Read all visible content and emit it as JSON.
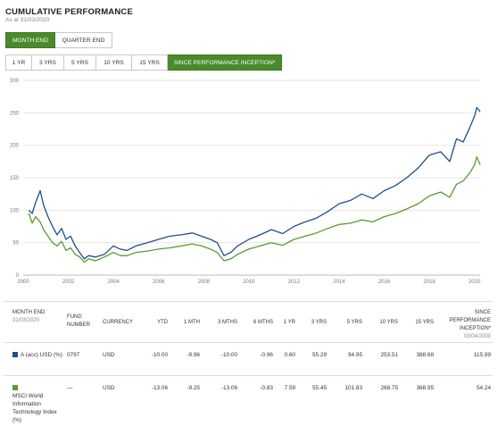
{
  "header": {
    "title": "CUMULATIVE PERFORMANCE",
    "as_at": "As at 31/03/2020"
  },
  "period_tabs": [
    {
      "label": "MONTH END",
      "active": true
    },
    {
      "label": "QUARTER END",
      "active": false
    }
  ],
  "range_tabs": [
    {
      "label": "1 YR",
      "active": false
    },
    {
      "label": "3 YRS",
      "active": false
    },
    {
      "label": "5 YRS",
      "active": false
    },
    {
      "label": "10 YRS",
      "active": false
    },
    {
      "label": "15 YRS",
      "active": false
    },
    {
      "label": "SINCE PERFORMANCE INCEPTION*",
      "active": true
    }
  ],
  "chart_data": {
    "type": "line",
    "ylim": [
      0,
      300
    ],
    "yticks": [
      0,
      50,
      100,
      150,
      200,
      250,
      300
    ],
    "xlim": [
      2000,
      2020.25
    ],
    "xticks": [
      2000,
      2002,
      2004,
      2006,
      2008,
      2010,
      2012,
      2014,
      2016,
      2018,
      2020
    ],
    "grid": true,
    "colors": {
      "fund": "#1f4e8c",
      "index": "#5b9a34"
    },
    "series": [
      {
        "key": "fund",
        "x": [
          2000.25,
          2000.4,
          2000.55,
          2000.75,
          2000.9,
          2001.1,
          2001.3,
          2001.5,
          2001.7,
          2001.9,
          2002.1,
          2002.3,
          2002.5,
          2002.7,
          2002.9,
          2003.2,
          2003.6,
          2004.0,
          2004.3,
          2004.6,
          2005.0,
          2005.5,
          2006.0,
          2006.5,
          2007.0,
          2007.5,
          2007.9,
          2008.3,
          2008.6,
          2008.9,
          2009.2,
          2009.5,
          2010.0,
          2010.5,
          2011.0,
          2011.5,
          2012.0,
          2012.5,
          2013.0,
          2013.5,
          2014.0,
          2014.5,
          2015.0,
          2015.5,
          2016.0,
          2016.5,
          2017.0,
          2017.5,
          2018.0,
          2018.5,
          2018.9,
          2019.2,
          2019.5,
          2019.8,
          2020.0,
          2020.1,
          2020.25
        ],
        "values": [
          100,
          95,
          112,
          130,
          108,
          90,
          75,
          62,
          72,
          55,
          60,
          45,
          35,
          25,
          30,
          28,
          32,
          45,
          40,
          38,
          45,
          50,
          55,
          60,
          62,
          65,
          60,
          55,
          50,
          30,
          35,
          45,
          55,
          62,
          70,
          64,
          75,
          82,
          88,
          98,
          110,
          115,
          125,
          118,
          130,
          138,
          150,
          165,
          185,
          190,
          175,
          210,
          205,
          228,
          245,
          258,
          252
        ]
      },
      {
        "key": "index",
        "x": [
          2000.25,
          2000.4,
          2000.55,
          2000.75,
          2000.9,
          2001.1,
          2001.3,
          2001.5,
          2001.7,
          2001.9,
          2002.1,
          2002.3,
          2002.5,
          2002.7,
          2002.9,
          2003.2,
          2003.6,
          2004.0,
          2004.3,
          2004.6,
          2005.0,
          2005.5,
          2006.0,
          2006.5,
          2007.0,
          2007.5,
          2007.9,
          2008.3,
          2008.6,
          2008.9,
          2009.2,
          2009.5,
          2010.0,
          2010.5,
          2011.0,
          2011.5,
          2012.0,
          2012.5,
          2013.0,
          2013.5,
          2014.0,
          2014.5,
          2015.0,
          2015.5,
          2016.0,
          2016.5,
          2017.0,
          2017.5,
          2018.0,
          2018.5,
          2018.9,
          2019.2,
          2019.5,
          2019.8,
          2020.0,
          2020.1,
          2020.25
        ],
        "values": [
          95,
          80,
          90,
          82,
          70,
          60,
          50,
          45,
          52,
          38,
          42,
          32,
          28,
          20,
          25,
          22,
          28,
          35,
          30,
          30,
          35,
          37,
          40,
          42,
          45,
          48,
          45,
          40,
          35,
          22,
          25,
          32,
          40,
          45,
          50,
          46,
          55,
          60,
          65,
          72,
          78,
          80,
          85,
          82,
          90,
          95,
          102,
          110,
          122,
          128,
          120,
          140,
          145,
          158,
          170,
          182,
          170
        ]
      }
    ]
  },
  "table": {
    "headers": {
      "month_end": "MONTH END",
      "month_end_date": "31/03/2020",
      "fund_number": "FUND NUMBER",
      "currency": "CURRENCY",
      "ytd": "YTD",
      "m1": "1 MTH",
      "m3": "3 MTHS",
      "m6": "6 MTHS",
      "y1": "1 YR",
      "y3": "3 YRS",
      "y5": "5 YRS",
      "y10": "10 YRS",
      "y15": "15 YRS",
      "since": "SINCE PERFORMANCE INCEPTION*",
      "since_date": "03/04/2000"
    },
    "rows": [
      {
        "name": "A (acc) USD (%)",
        "color": "#1f4e8c",
        "fund_number": "0797",
        "currency": "USD",
        "ytd": "-10.00",
        "m1": "-9.96",
        "m3": "-10.00",
        "m6": "-0.96",
        "y1": "0.60",
        "y3": "55.29",
        "y5": "94.95",
        "y10": "253.51",
        "y15": "388.68",
        "since": "115.99"
      },
      {
        "name": "MSCI World Information Technology Index (%)",
        "color": "#5b9a34",
        "fund_number": "—",
        "currency": "USD",
        "ytd": "-13.06",
        "m1": "-9.25",
        "m3": "-13.06",
        "m6": "-0.83",
        "y1": "7.59",
        "y3": "55.45",
        "y5": "101.83",
        "y10": "268.75",
        "y15": "368.95",
        "since": "54.24"
      }
    ]
  }
}
